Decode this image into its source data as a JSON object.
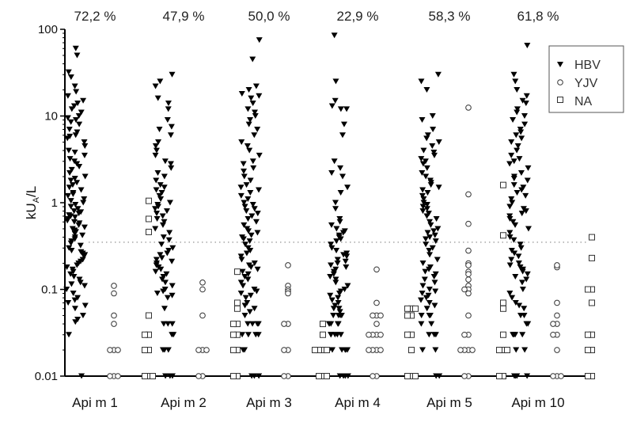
{
  "chart_data": {
    "type": "scatter",
    "title": "",
    "xlabel": "",
    "ylabel": "kUA/L",
    "ylabel_main": "kU",
    "ylabel_sub": "A",
    "ylabel_tail": "/L",
    "yscale": "log",
    "ylim": [
      0.01,
      100
    ],
    "yticks": [
      "100",
      "10",
      "1",
      "0.1",
      "0.01"
    ],
    "ytick_values": [
      100,
      10,
      1,
      0.1,
      0.01
    ],
    "cutoff": 0.35,
    "grid": false,
    "legend_position": "top-right",
    "categories": [
      "Api m 1",
      "Api m 2",
      "Api m 3",
      "Api m 4",
      "Api m 5",
      "Api m 10"
    ],
    "percent_labels": [
      "72,2 %",
      "47,9 %",
      "50,0 %",
      "22,9 %",
      "58,3 %",
      "61,8 %"
    ],
    "series": [
      {
        "name": "HBV",
        "marker": "filled-triangle-down",
        "color": "#000000",
        "groups": [
          [
            60,
            50,
            32,
            28,
            22,
            19,
            17,
            15,
            14,
            13,
            12,
            11,
            10,
            9.5,
            9,
            8.5,
            8,
            7,
            6.5,
            6,
            5.8,
            5.5,
            5,
            4.5,
            4,
            3.8,
            3.5,
            3.2,
            3,
            2.8,
            2.6,
            2.4,
            2.2,
            2,
            1.9,
            1.8,
            1.7,
            1.6,
            1.5,
            1.4,
            1.3,
            1.25,
            1.2,
            1.1,
            1.05,
            1,
            0.95,
            0.9,
            0.85,
            0.8,
            0.78,
            0.75,
            0.72,
            0.7,
            0.68,
            0.65,
            0.62,
            0.6,
            0.58,
            0.55,
            0.52,
            0.5,
            0.48,
            0.46,
            0.44,
            0.42,
            0.4,
            0.38,
            0.36,
            0.34,
            0.32,
            0.3,
            0.28,
            0.27,
            0.26,
            0.25,
            0.24,
            0.22,
            0.21,
            0.2,
            0.19,
            0.18,
            0.17,
            0.16,
            0.15,
            0.14,
            0.13,
            0.12,
            0.115,
            0.11,
            0.1,
            0.09,
            0.08,
            0.075,
            0.07,
            0.065,
            0.06,
            0.05,
            0.045,
            0.042,
            0.03,
            0.01
          ],
          [
            30,
            25,
            22,
            16,
            14,
            12,
            9,
            7.5,
            7,
            6,
            5,
            4.5,
            4,
            3.5,
            3,
            2.8,
            2.5,
            2.2,
            2,
            1.8,
            1.6,
            1.5,
            1.4,
            1.3,
            1.2,
            1.1,
            1,
            0.95,
            0.9,
            0.85,
            0.8,
            0.75,
            0.7,
            0.65,
            0.6,
            0.55,
            0.5,
            0.45,
            0.4,
            0.37,
            0.33,
            0.3,
            0.28,
            0.26,
            0.25,
            0.23,
            0.22,
            0.21,
            0.2,
            0.19,
            0.18,
            0.17,
            0.16,
            0.15,
            0.14,
            0.13,
            0.12,
            0.11,
            0.1,
            0.095,
            0.09,
            0.085,
            0.08,
            0.06,
            0.04,
            0.04,
            0.04,
            0.03,
            0.03,
            0.02,
            0.02,
            0.02,
            0.01,
            0.01,
            0.01
          ],
          [
            75,
            45,
            22,
            20,
            18,
            17,
            16,
            14,
            12,
            11,
            10,
            9,
            8,
            7,
            6,
            5,
            4.5,
            4,
            3.5,
            3,
            2.8,
            2.5,
            2.3,
            2,
            1.8,
            1.6,
            1.5,
            1.4,
            1.3,
            1.2,
            1.1,
            1,
            0.95,
            0.9,
            0.85,
            0.8,
            0.75,
            0.7,
            0.65,
            0.6,
            0.55,
            0.5,
            0.47,
            0.45,
            0.42,
            0.4,
            0.38,
            0.36,
            0.33,
            0.3,
            0.28,
            0.26,
            0.24,
            0.22,
            0.2,
            0.19,
            0.18,
            0.17,
            0.16,
            0.15,
            0.14,
            0.13,
            0.12,
            0.11,
            0.1,
            0.095,
            0.09,
            0.085,
            0.08,
            0.07,
            0.065,
            0.06,
            0.055,
            0.05,
            0.04,
            0.04,
            0.04,
            0.04,
            0.03,
            0.03,
            0.03,
            0.03,
            0.02,
            0.02,
            0.01,
            0.01,
            0.01
          ],
          [
            85,
            25,
            15,
            13,
            12,
            12,
            8,
            6,
            3,
            2.5,
            2.2,
            2,
            1.5,
            1.3,
            1,
            0.85,
            0.65,
            0.6,
            0.55,
            0.5,
            0.47,
            0.45,
            0.42,
            0.4,
            0.38,
            0.36,
            0.33,
            0.3,
            0.28,
            0.26,
            0.25,
            0.24,
            0.22,
            0.21,
            0.2,
            0.19,
            0.18,
            0.17,
            0.16,
            0.15,
            0.14,
            0.13,
            0.12,
            0.11,
            0.1,
            0.095,
            0.09,
            0.085,
            0.08,
            0.075,
            0.07,
            0.065,
            0.06,
            0.06,
            0.055,
            0.05,
            0.05,
            0.05,
            0.05,
            0.04,
            0.04,
            0.04,
            0.04,
            0.04,
            0.03,
            0.03,
            0.03,
            0.03,
            0.03,
            0.02,
            0.02,
            0.02,
            0.02,
            0.02,
            0.02,
            0.01,
            0.01,
            0.01,
            0.01
          ],
          [
            30,
            25,
            20,
            10,
            9,
            7,
            6,
            5.5,
            5,
            4.5,
            4,
            3.8,
            3.5,
            3.2,
            3,
            2.8,
            2.5,
            2.2,
            2,
            1.8,
            1.7,
            1.6,
            1.5,
            1.4,
            1.3,
            1.2,
            1.1,
            1,
            0.95,
            0.9,
            0.85,
            0.8,
            0.75,
            0.7,
            0.65,
            0.6,
            0.55,
            0.5,
            0.47,
            0.45,
            0.42,
            0.4,
            0.38,
            0.36,
            0.33,
            0.3,
            0.28,
            0.25,
            0.22,
            0.2,
            0.18,
            0.17,
            0.16,
            0.15,
            0.14,
            0.13,
            0.12,
            0.11,
            0.1,
            0.095,
            0.09,
            0.085,
            0.08,
            0.075,
            0.07,
            0.065,
            0.06,
            0.05,
            0.05,
            0.05,
            0.04,
            0.04,
            0.03,
            0.03,
            0.03,
            0.02,
            0.02,
            0.01,
            0.01
          ],
          [
            65,
            30,
            25,
            20,
            17,
            15,
            14,
            12,
            11,
            10,
            9,
            8,
            7,
            6.5,
            6,
            5.5,
            5,
            4.5,
            4,
            3.5,
            3.2,
            3,
            2.8,
            2.5,
            2.2,
            2,
            1.9,
            1.8,
            1.6,
            1.5,
            1.4,
            1.3,
            1.2,
            1.1,
            1,
            0.9,
            0.85,
            0.8,
            0.75,
            0.7,
            0.65,
            0.6,
            0.55,
            0.5,
            0.45,
            0.4,
            0.37,
            0.33,
            0.3,
            0.28,
            0.26,
            0.24,
            0.22,
            0.2,
            0.19,
            0.18,
            0.17,
            0.16,
            0.15,
            0.14,
            0.13,
            0.12,
            0.1,
            0.09,
            0.08,
            0.07,
            0.065,
            0.06,
            0.05,
            0.05,
            0.04,
            0.04,
            0.03,
            0.03,
            0.03,
            0.03,
            0.02,
            0.02,
            0.01,
            0.01,
            0.01,
            0.01
          ]
        ]
      },
      {
        "name": "YJV",
        "marker": "open-circle",
        "color": "#333333",
        "groups": [
          [
            0.11,
            0.09,
            0.05,
            0.04,
            0.02,
            0.02,
            0.02,
            0.01,
            0.01,
            0.01
          ],
          [
            0.12,
            0.1,
            0.05,
            0.02,
            0.02,
            0.02,
            0.01,
            0.01
          ],
          [
            0.19,
            0.11,
            0.1,
            0.095,
            0.09,
            0.04,
            0.04,
            0.02,
            0.02,
            0.01,
            0.01
          ],
          [
            0.17,
            0.07,
            0.05,
            0.05,
            0.05,
            0.04,
            0.03,
            0.03,
            0.03,
            0.03,
            0.02,
            0.02,
            0.02,
            0.02,
            0.01,
            0.01
          ],
          [
            12.5,
            1.25,
            0.57,
            0.28,
            0.2,
            0.19,
            0.16,
            0.15,
            0.13,
            0.11,
            0.1,
            0.1,
            0.09,
            0.05,
            0.03,
            0.03,
            0.02,
            0.02,
            0.02,
            0.02,
            0.01,
            0.01
          ],
          [
            0.18,
            0.19,
            0.07,
            0.05,
            0.04,
            0.04,
            0.03,
            0.03,
            0.02,
            0.01,
            0.01,
            0.01
          ]
        ]
      },
      {
        "name": "NA",
        "marker": "open-square",
        "color": "#333333",
        "groups": [
          [
            1.05,
            0.65,
            0.46,
            0.05,
            0.03,
            0.03,
            0.02,
            0.02,
            0.01,
            0.01,
            0.01
          ],
          [
            0.16,
            0.07,
            0.06,
            0.04,
            0.04,
            0.03,
            0.03,
            0.02,
            0.02,
            0.01,
            0.01
          ],
          [
            0.04,
            0.03,
            0.02,
            0.02,
            0.02,
            0.02,
            0.01,
            0.01,
            0.01
          ],
          [
            0.06,
            0.06,
            0.06,
            0.05,
            0.05,
            0.03,
            0.03,
            0.02,
            0.01,
            0.01,
            0.01
          ],
          [
            1.6,
            0.42,
            0.07,
            0.06,
            0.03,
            0.02,
            0.02,
            0.02,
            0.01,
            0.01
          ],
          [
            0.4,
            0.23,
            0.1,
            0.1,
            0.07,
            0.03,
            0.03,
            0.02,
            0.02,
            0.01,
            0.01
          ]
        ]
      }
    ]
  }
}
